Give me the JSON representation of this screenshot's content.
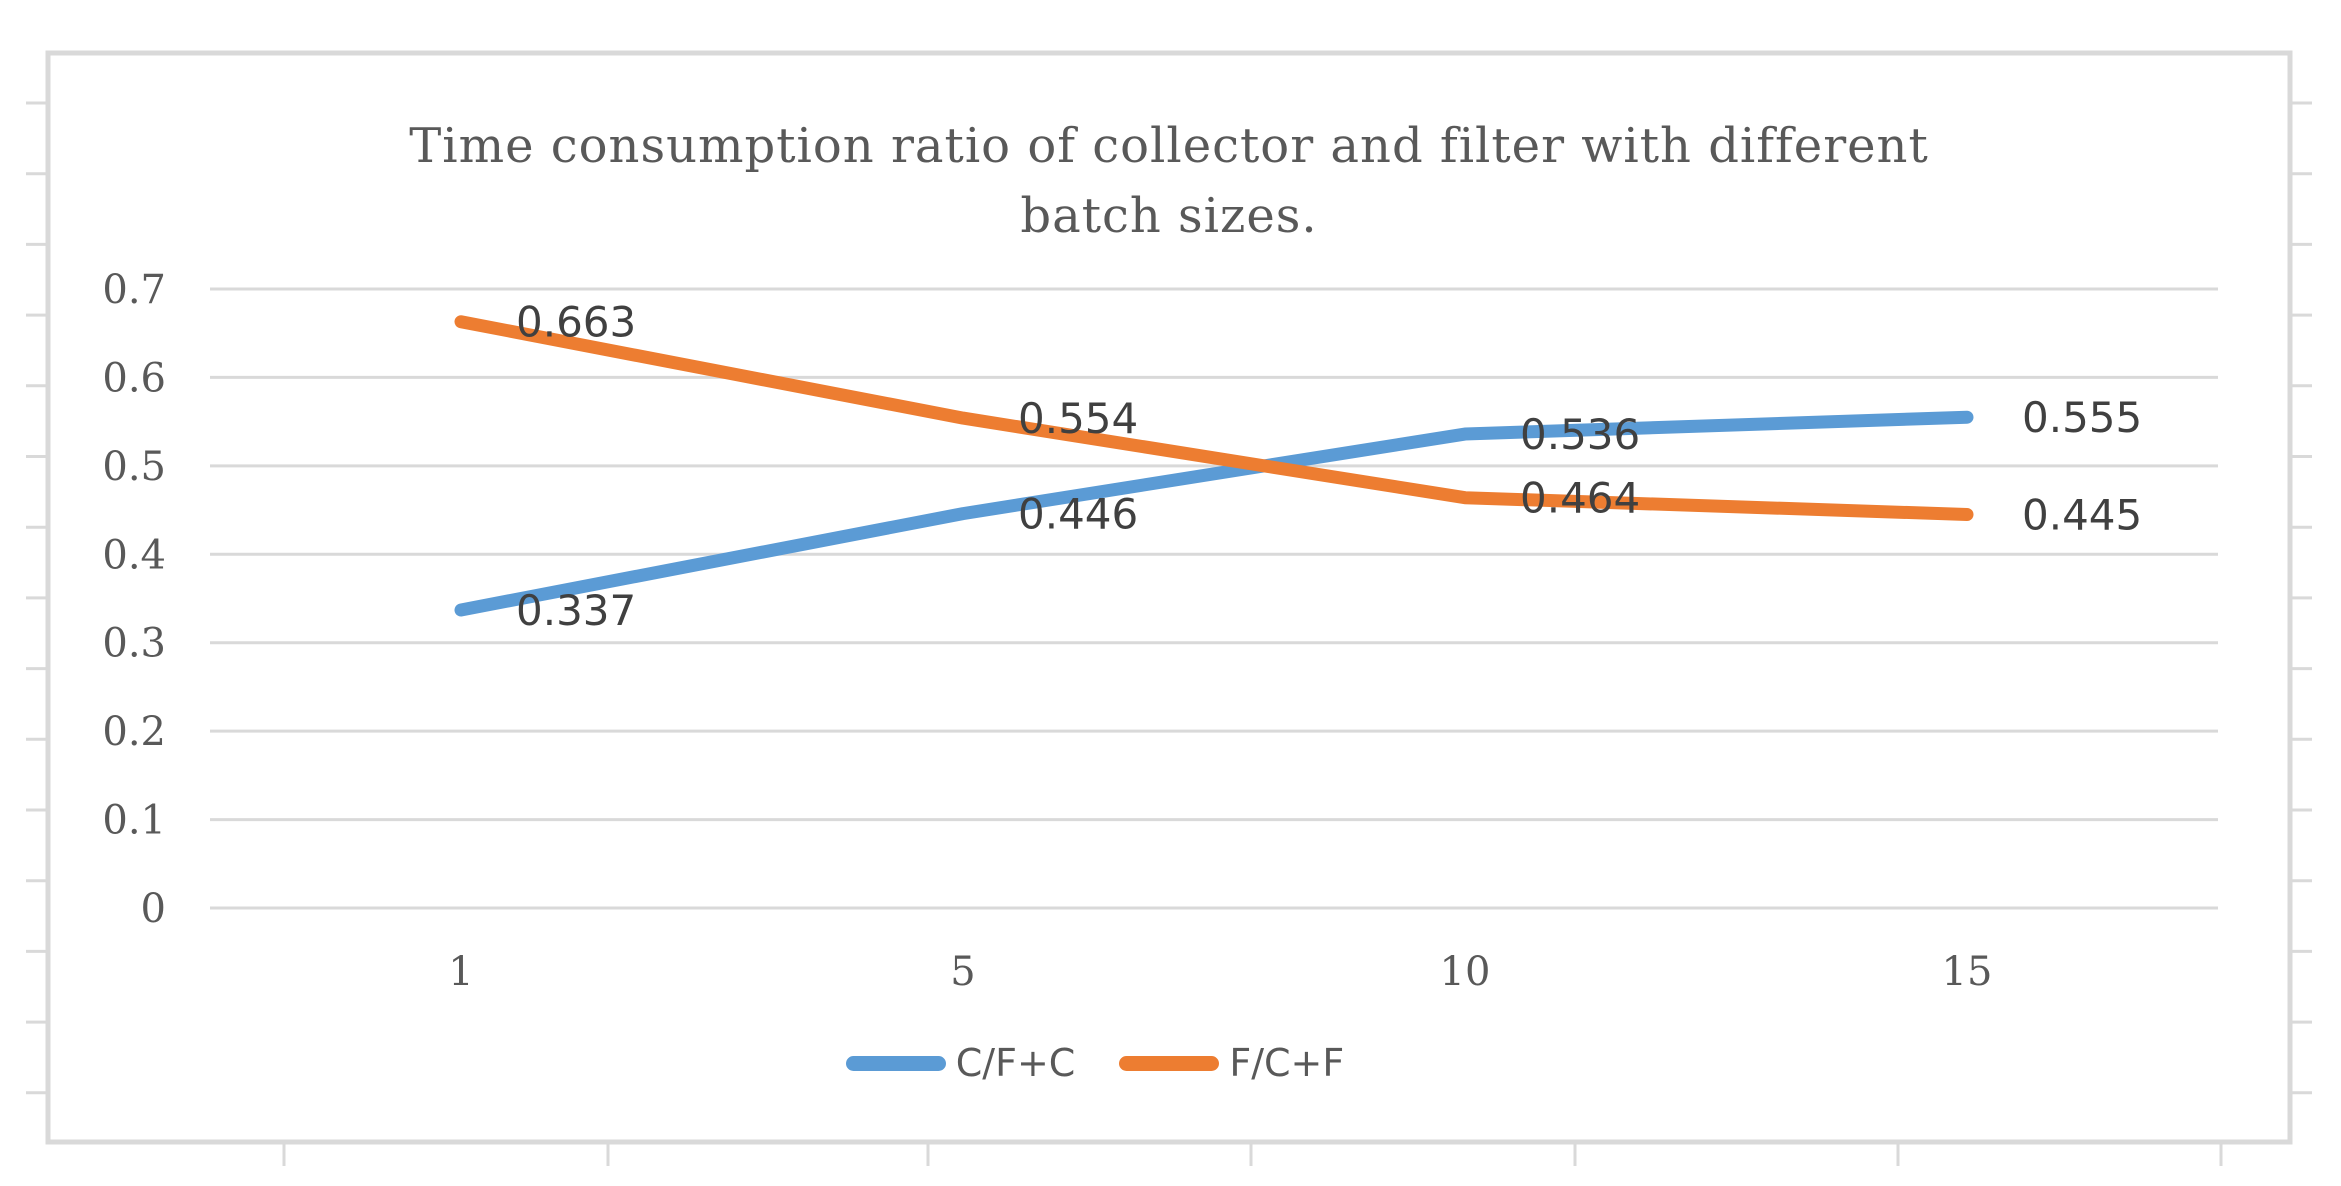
{
  "chart_data": {
    "type": "line",
    "title": "Time consumption ratio of collector and filter with different batch sizes.",
    "title_lines": [
      "Time consumption ratio of collector and filter with different",
      "batch sizes."
    ],
    "categories": [
      "1",
      "5",
      "10",
      "15"
    ],
    "xlabel": "",
    "ylabel": "",
    "ylim": [
      0,
      0.7
    ],
    "y_ticks": [
      "0.7",
      "0.6",
      "0.5",
      "0.4",
      "0.3",
      "0.2",
      "0.1",
      "0"
    ],
    "grid": true,
    "legend_position": "bottom",
    "series": [
      {
        "name": "C/F+C",
        "color": "#5B9BD5",
        "values": [
          0.337,
          0.446,
          0.536,
          0.555
        ],
        "point_labels": [
          "0.337",
          "0.446",
          "0.536",
          "0.555"
        ]
      },
      {
        "name": "F/C+F",
        "color": "#ED7D31",
        "values": [
          0.663,
          0.554,
          0.464,
          0.445
        ],
        "point_labels": [
          "0.663",
          "0.554",
          "0.464",
          "0.445"
        ]
      }
    ]
  },
  "colors": {
    "background": "#FFFFFF",
    "frame": "#D9D9D9",
    "grid": "#D9D9D9",
    "axis_text": "#595959",
    "title_text": "#595959",
    "data_label_text": "#404040",
    "series_blue": "#5B9BD5",
    "series_orange": "#ED7D31"
  }
}
